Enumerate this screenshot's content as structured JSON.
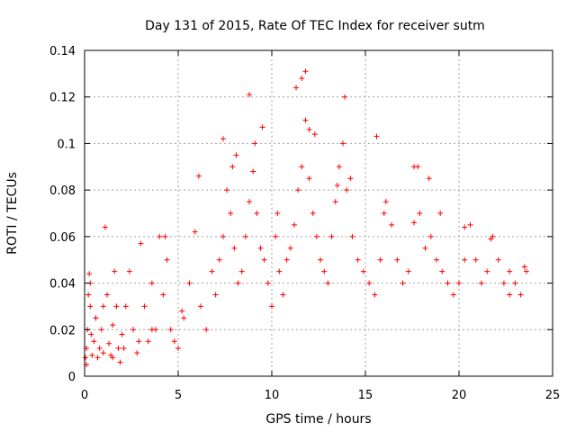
{
  "chart_data": {
    "type": "scatter",
    "title": "Day 131 of 2015, Rate Of TEC Index for receiver sutm",
    "xlabel": "GPS time / hours",
    "ylabel": "ROTI / TECUs",
    "xlim": [
      0,
      25
    ],
    "ylim": [
      0,
      0.14
    ],
    "x_ticks": [
      "0",
      "5",
      "10",
      "15",
      "20",
      "25"
    ],
    "y_ticks": [
      "0",
      "0.02",
      "0.04",
      "0.06",
      "0.08",
      "0.1",
      "0.12",
      "0.14"
    ],
    "grid": true,
    "marker": "plus",
    "color": "#ff0000",
    "series": [
      {
        "x": [
          0.05,
          0.1,
          0.15,
          0.2,
          0.25,
          0.3,
          0.35,
          0.4,
          0.5,
          0.6,
          0.7,
          0.8,
          0.9,
          1.0,
          1.1,
          1.2,
          1.3,
          1.4,
          1.5,
          1.6,
          1.7,
          1.8,
          1.9,
          2.0,
          2.2,
          2.4,
          2.6,
          2.8,
          3.0,
          3.2,
          3.4,
          3.6,
          3.8,
          4.0,
          4.2,
          4.4,
          4.6,
          4.8,
          5.0,
          5.3,
          5.6,
          5.9,
          6.2,
          6.5,
          6.8,
          7.0,
          7.2,
          7.4,
          7.6,
          7.8,
          8.0,
          8.2,
          8.4,
          8.6,
          8.8,
          9.0,
          9.2,
          9.4,
          9.6,
          9.8,
          10.0,
          10.2,
          10.4,
          10.6,
          10.8,
          11.0,
          11.2,
          11.4,
          11.6,
          11.8,
          12.0,
          12.2,
          12.4,
          12.6,
          12.8,
          13.0,
          13.2,
          13.4,
          13.6,
          13.8,
          14.0,
          14.3,
          14.6,
          14.9,
          15.2,
          15.5,
          15.8,
          16.1,
          16.4,
          16.7,
          17.0,
          17.3,
          17.6,
          17.9,
          18.2,
          18.5,
          18.8,
          19.1,
          19.4,
          19.7,
          20.0,
          20.3,
          20.6,
          20.9,
          21.2,
          21.5,
          21.8,
          22.1,
          22.4,
          22.7,
          23.0,
          23.3,
          23.6,
          0.1,
          0.3,
          0.6,
          1.0,
          1.5,
          2.1,
          2.9,
          3.6,
          4.3,
          5.2,
          6.1,
          7.4,
          7.9,
          8.1,
          8.8,
          9.1,
          9.5,
          10.3,
          11.3,
          11.6,
          11.8,
          12.0,
          12.3,
          13.5,
          13.9,
          14.2,
          15.6,
          16.0,
          17.6,
          17.8,
          18.4,
          19.0,
          20.3,
          21.7,
          22.7,
          23.5
        ],
        "y": [
          0.008,
          0.012,
          0.02,
          0.035,
          0.044,
          0.03,
          0.018,
          0.009,
          0.015,
          0.025,
          0.008,
          0.012,
          0.02,
          0.03,
          0.064,
          0.035,
          0.014,
          0.009,
          0.022,
          0.045,
          0.03,
          0.012,
          0.006,
          0.018,
          0.03,
          0.045,
          0.02,
          0.01,
          0.057,
          0.03,
          0.015,
          0.04,
          0.02,
          0.06,
          0.035,
          0.05,
          0.02,
          0.015,
          0.012,
          0.025,
          0.04,
          0.062,
          0.03,
          0.02,
          0.045,
          0.035,
          0.05,
          0.06,
          0.08,
          0.07,
          0.055,
          0.04,
          0.045,
          0.06,
          0.075,
          0.088,
          0.07,
          0.055,
          0.05,
          0.04,
          0.03,
          0.06,
          0.045,
          0.035,
          0.05,
          0.055,
          0.065,
          0.08,
          0.09,
          0.11,
          0.085,
          0.07,
          0.06,
          0.05,
          0.045,
          0.04,
          0.06,
          0.075,
          0.09,
          0.1,
          0.08,
          0.06,
          0.05,
          0.045,
          0.04,
          0.035,
          0.05,
          0.075,
          0.065,
          0.05,
          0.04,
          0.045,
          0.09,
          0.07,
          0.055,
          0.06,
          0.05,
          0.045,
          0.04,
          0.035,
          0.04,
          0.05,
          0.065,
          0.05,
          0.04,
          0.045,
          0.06,
          0.05,
          0.04,
          0.035,
          0.04,
          0.035,
          0.045,
          0.005,
          0.04,
          0.025,
          0.01,
          0.008,
          0.012,
          0.015,
          0.02,
          0.06,
          0.028,
          0.086,
          0.102,
          0.09,
          0.095,
          0.121,
          0.1,
          0.107,
          0.07,
          0.124,
          0.128,
          0.131,
          0.106,
          0.104,
          0.082,
          0.12,
          0.085,
          0.103,
          0.07,
          0.066,
          0.09,
          0.085,
          0.07,
          0.064,
          0.059,
          0.045,
          0.047
        ]
      }
    ]
  }
}
